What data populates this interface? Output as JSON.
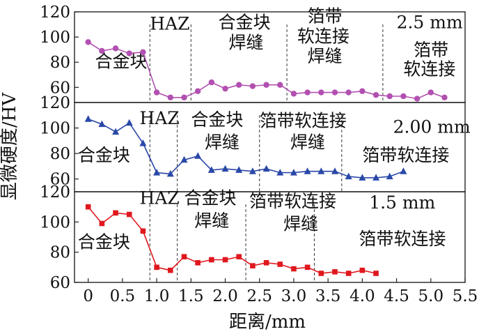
{
  "chart_data": {
    "type": "line",
    "xlabel": "距离/mm",
    "ylabel": "显微硬度/HV",
    "xlim": [
      -0.2,
      5.5
    ],
    "xticks": [
      "0",
      "0.5",
      "1.0",
      "1.5",
      "2.0",
      "2.5",
      "3.0",
      "3.5",
      "4.0",
      "4.5",
      "5.0",
      "5.5"
    ],
    "xtick_values": [
      0,
      0.5,
      1.0,
      1.5,
      2.0,
      2.5,
      3.0,
      3.5,
      4.0,
      4.5,
      5.0,
      5.5
    ],
    "grid": false,
    "panels": [
      {
        "name": "2.5 mm",
        "label": "2.5 mm",
        "color": "#b150b0",
        "marker": "circle",
        "ylim": [
          48,
          120
        ],
        "yticks": [
          "60",
          "80",
          "100",
          "120"
        ],
        "ytick_values": [
          60,
          80,
          100,
          120
        ],
        "boundaries": [
          0.9,
          1.5,
          2.9,
          4.3
        ],
        "annotations": [
          {
            "text": "合金块",
            "x": 0.1,
            "y": 81
          },
          {
            "text": "HAZ",
            "x": 0.9,
            "y": 111
          },
          {
            "text": "合金块",
            "x": 1.9,
            "y": 112
          },
          {
            "text": "焊缝",
            "x": 2.05,
            "y": 96
          },
          {
            "text": "箔带",
            "x": 3.2,
            "y": 117
          },
          {
            "text": "软连接",
            "x": 3.05,
            "y": 101
          },
          {
            "text": "焊缝",
            "x": 3.2,
            "y": 85
          },
          {
            "text": "2.5 mm",
            "x": 4.5,
            "y": 112
          },
          {
            "text": "箔带",
            "x": 4.75,
            "y": 90
          },
          {
            "text": "软连接",
            "x": 4.6,
            "y": 75
          }
        ],
        "series": [
          {
            "x": [
              0,
              0.2,
              0.4,
              0.6,
              0.8,
              1.0,
              1.2,
              1.4,
              1.6,
              1.8,
              2.0,
              2.2,
              2.4,
              2.6,
              2.8,
              3.0,
              3.2,
              3.4,
              3.6,
              3.8,
              4.0,
              4.2,
              4.4,
              4.6,
              4.8,
              5.0,
              5.2
            ],
            "y": [
              96,
              89,
              91,
              87,
              88,
              56,
              52,
              52,
              57,
              64,
              59,
              62,
              61,
              62,
              62,
              55,
              56,
              56,
              56,
              56,
              57,
              54,
              53,
              53,
              51,
              56,
              52
            ]
          }
        ]
      },
      {
        "name": "2.00 mm",
        "label": "2.00 mm",
        "color": "#2a48a8",
        "marker": "triangle",
        "ylim": [
          50,
          120
        ],
        "yticks": [
          "60",
          "80",
          "100",
          "120"
        ],
        "ytick_values": [
          60,
          80,
          100,
          120
        ],
        "boundaries": [
          0.9,
          1.3,
          2.5,
          3.7
        ],
        "annotations": [
          {
            "text": "HAZ",
            "x": 0.75,
            "y": 108
          },
          {
            "text": "合金块",
            "x": 1.5,
            "y": 107
          },
          {
            "text": "焊缝",
            "x": 1.7,
            "y": 89
          },
          {
            "text": "箔带软连接",
            "x": 2.5,
            "y": 106
          },
          {
            "text": "焊缝",
            "x": 2.95,
            "y": 89
          },
          {
            "text": "2.00 mm",
            "x": 4.45,
            "y": 101
          },
          {
            "text": "合金块",
            "x": -0.15,
            "y": 79
          },
          {
            "text": "箔带软连接",
            "x": 4.0,
            "y": 79
          }
        ],
        "series": [
          {
            "x": [
              0,
              0.2,
              0.4,
              0.6,
              0.8,
              1.0,
              1.2,
              1.4,
              1.6,
              1.8,
              2.0,
              2.2,
              2.4,
              2.6,
              2.8,
              3.0,
              3.2,
              3.4,
              3.6,
              3.8,
              4.0,
              4.2,
              4.4,
              4.6
            ],
            "y": [
              107,
              103,
              97,
              104,
              88,
              65,
              64,
              75,
              78,
              67,
              68,
              67,
              66,
              68,
              65,
              65,
              66,
              66,
              66,
              62,
              61,
              61,
              62,
              66
            ]
          }
        ]
      },
      {
        "name": "1.5 mm",
        "label": "1.5 mm",
        "color": "#e0181e",
        "marker": "square",
        "ylim": [
          60,
          120
        ],
        "yticks": [
          "60",
          "80",
          "100",
          "120"
        ],
        "ytick_values": [
          60,
          80,
          100,
          120
        ],
        "boundaries": [
          0.9,
          1.3,
          2.3,
          3.3
        ],
        "annotations": [
          {
            "text": "HAZ",
            "x": 0.75,
            "y": 116
          },
          {
            "text": "合金块",
            "x": 1.4,
            "y": 116
          },
          {
            "text": "焊缝",
            "x": 1.55,
            "y": 101
          },
          {
            "text": "箔带软连接",
            "x": 2.35,
            "y": 114
          },
          {
            "text": "焊缝",
            "x": 2.85,
            "y": 99
          },
          {
            "text": "1.5 mm",
            "x": 4.1,
            "y": 113
          },
          {
            "text": "合金块",
            "x": -0.15,
            "y": 87
          },
          {
            "text": "箔带软连接",
            "x": 3.95,
            "y": 89
          }
        ],
        "series": [
          {
            "x": [
              0,
              0.2,
              0.4,
              0.6,
              0.8,
              1.0,
              1.2,
              1.4,
              1.6,
              1.8,
              2.0,
              2.2,
              2.4,
              2.6,
              2.8,
              3.0,
              3.2,
              3.4,
              3.6,
              3.8,
              4.0,
              4.2
            ],
            "y": [
              110,
              99,
              106,
              105,
              94,
              70,
              68,
              77,
              73,
              75,
              75,
              77,
              71,
              73,
              72,
              69,
              70,
              66,
              67,
              66,
              68,
              66
            ]
          }
        ]
      }
    ]
  }
}
